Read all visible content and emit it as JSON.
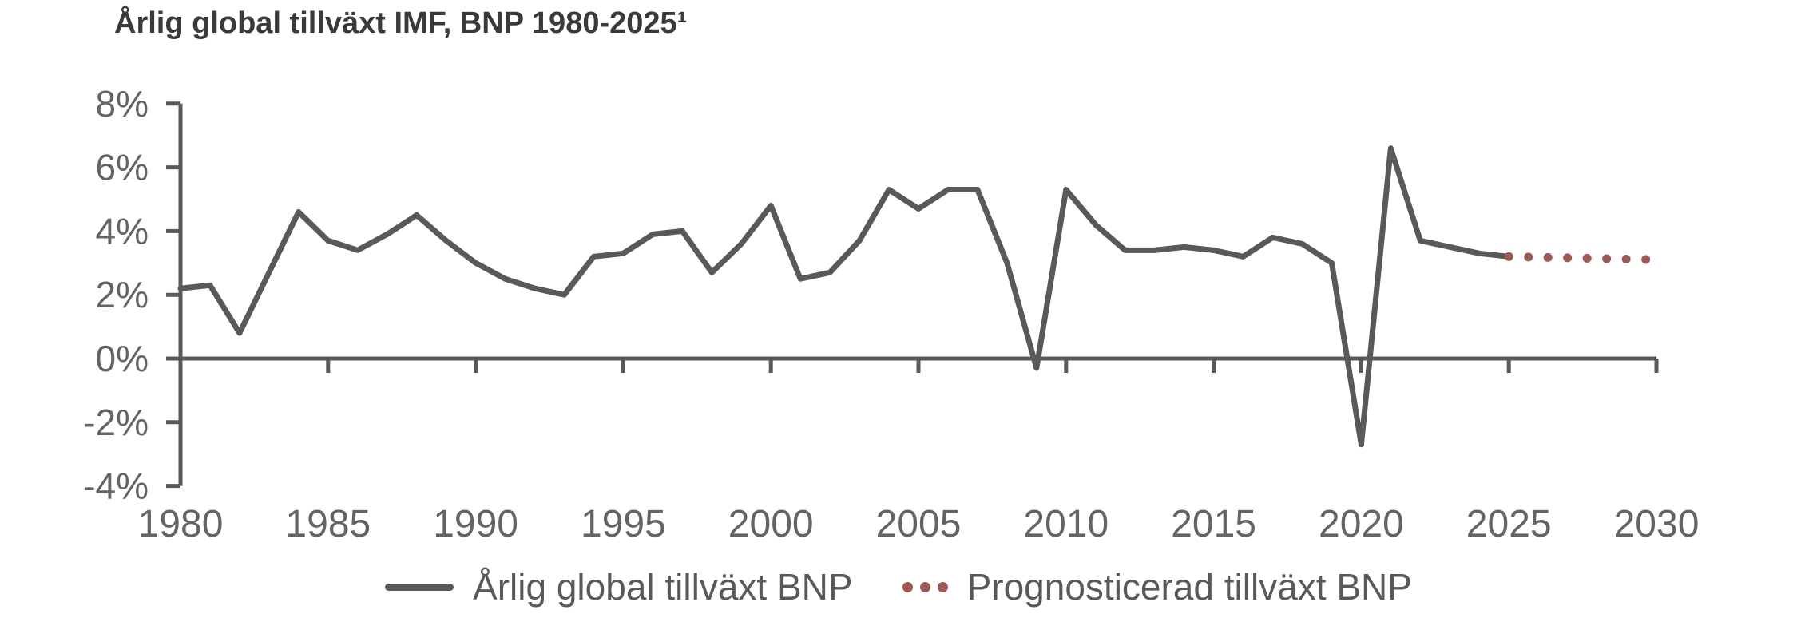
{
  "title": "Årlig global tillväxt IMF, BNP 1980-2025¹",
  "legend": {
    "actual": "Årlig global tillväxt BNP",
    "forecast": "Prognosticerad tillväxt BNP"
  },
  "colors": {
    "line": "#595959",
    "axis": "#595959",
    "tick_text": "#646464",
    "title_text": "#3a3a3a",
    "forecast_dots": "#9b5a54",
    "background": "#ffffff"
  },
  "axes": {
    "y_tick_labels": [
      "8%",
      "6%",
      "4%",
      "2%",
      "0%",
      "-2%",
      "-4%"
    ],
    "y_tick_values": [
      8,
      6,
      4,
      2,
      0,
      -2,
      -4
    ],
    "x_tick_labels": [
      "1980",
      "1985",
      "1990",
      "1995",
      "2000",
      "2005",
      "2010",
      "2015",
      "2020",
      "2025",
      "2030"
    ],
    "x_tick_values": [
      1980,
      1985,
      1990,
      1995,
      2000,
      2005,
      2010,
      2015,
      2020,
      2025,
      2030
    ],
    "y_unit": "%",
    "grid": false
  },
  "chart_data": {
    "type": "line",
    "title": "Årlig global tillväxt IMF, BNP 1980-2025¹",
    "xlabel": "",
    "ylabel": "",
    "x_range": [
      1980,
      2030
    ],
    "ylim": [
      -4,
      8
    ],
    "y_unit": "%",
    "grid": false,
    "legend_position": "bottom",
    "series": [
      {
        "name": "Årlig global tillväxt BNP",
        "style": "solid",
        "color": "#595959",
        "years": [
          1980,
          1981,
          1982,
          1983,
          1984,
          1985,
          1986,
          1987,
          1988,
          1989,
          1990,
          1991,
          1992,
          1993,
          1994,
          1995,
          1996,
          1997,
          1998,
          1999,
          2000,
          2001,
          2002,
          2003,
          2004,
          2005,
          2006,
          2007,
          2008,
          2009,
          2010,
          2011,
          2012,
          2013,
          2014,
          2015,
          2016,
          2017,
          2018,
          2019,
          2020,
          2021,
          2022,
          2023,
          2024,
          2025
        ],
        "values": [
          2.2,
          2.3,
          0.8,
          2.7,
          4.6,
          3.7,
          3.4,
          3.9,
          4.5,
          3.7,
          3.0,
          2.5,
          2.2,
          2.0,
          3.2,
          3.3,
          3.9,
          4.0,
          2.7,
          3.6,
          4.8,
          2.5,
          2.7,
          3.7,
          5.3,
          4.7,
          5.3,
          5.3,
          3.0,
          -0.3,
          5.3,
          4.2,
          3.4,
          3.4,
          3.5,
          3.4,
          3.2,
          3.8,
          3.6,
          3.0,
          -2.7,
          6.6,
          3.7,
          3.5,
          3.3,
          3.2
        ]
      },
      {
        "name": "Prognosticerad tillväxt BNP",
        "style": "dotted",
        "color": "#9b5a54",
        "years": [
          2025,
          2026,
          2027,
          2028,
          2029,
          2030
        ],
        "values": [
          3.2,
          3.18,
          3.16,
          3.14,
          3.12,
          3.1
        ]
      }
    ]
  }
}
